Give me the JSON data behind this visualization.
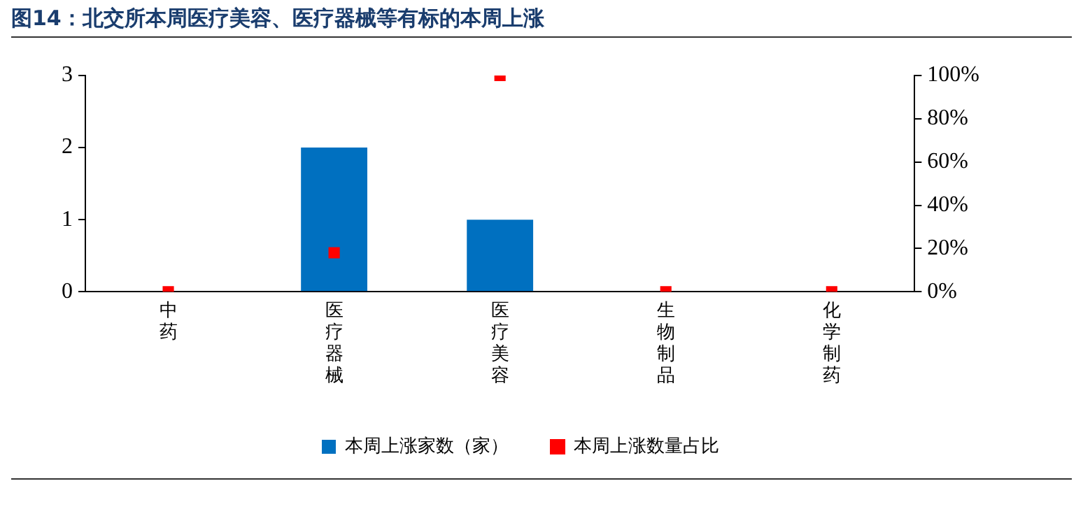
{
  "chart_data": {
    "type": "bar",
    "title": "图14：北交所本周医疗美容、医疗器械等有标的本周上涨",
    "categories": [
      "中药",
      "医疗器械",
      "医疗美容",
      "生物制品",
      "化学制药"
    ],
    "series": [
      {
        "name": "本周上涨家数（家）",
        "type": "bar",
        "color": "#0070c0",
        "values": [
          0,
          2,
          1,
          0,
          0
        ]
      },
      {
        "name": "本周上涨数量占比",
        "type": "scatter",
        "axis": "y2",
        "color": "#ff0000",
        "marker": "square",
        "x": [
          "中药",
          "医疗器械",
          "医疗美容",
          "生物制品",
          "化学制药"
        ],
        "values": [
          0,
          18,
          100,
          0,
          0
        ]
      }
    ],
    "ylim": [
      0,
      3
    ],
    "yticks": [
      0,
      1,
      2,
      3
    ],
    "y2lim": [
      0,
      100
    ],
    "y2ticks": [
      {
        "value": 0,
        "label": "0%"
      },
      {
        "value": 20,
        "label": "20%"
      },
      {
        "value": 40,
        "label": "40%"
      },
      {
        "value": 60,
        "label": "60%"
      },
      {
        "value": 80,
        "label": "80%"
      },
      {
        "value": 100,
        "label": "100%"
      }
    ],
    "grid": false,
    "legend": "bottom"
  }
}
